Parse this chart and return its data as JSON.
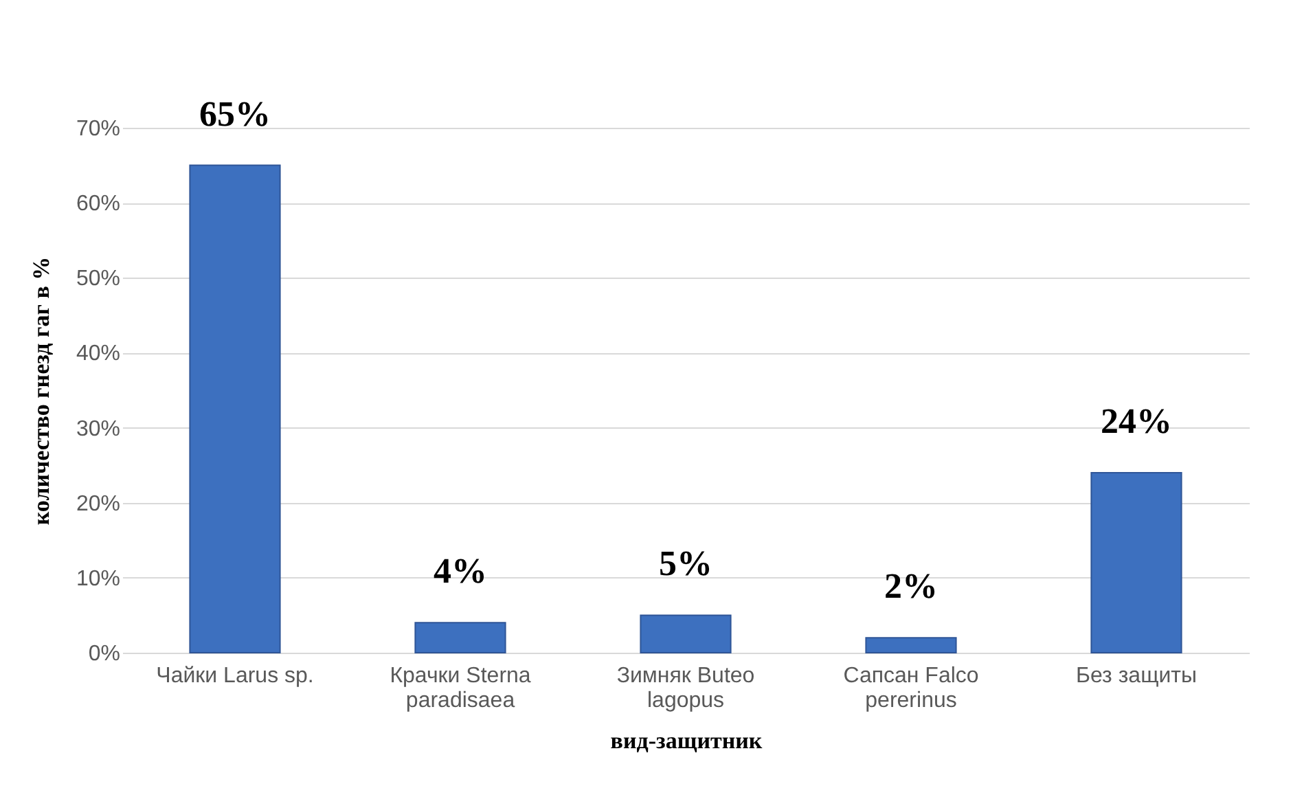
{
  "chart_data": {
    "type": "bar",
    "xlabel": "вид-защитник",
    "ylabel": "количество гнезд гаг в %",
    "categories": [
      "Чайки Larus sp.",
      "Крачки Sterna paradisaea",
      "Зимняк Buteo lagopus",
      "Сапсан Falco pererinus",
      "Без защиты"
    ],
    "values": [
      65,
      4,
      5,
      2,
      24
    ],
    "color": "#3d70bf",
    "value_labels": [
      "65%",
      "4%",
      "5%",
      "2%",
      "24%"
    ],
    "ylim": [
      0,
      70
    ],
    "yticks": [
      {
        "value": 0,
        "label": "0%"
      },
      {
        "value": 10,
        "label": "10%"
      },
      {
        "value": 20,
        "label": "20%"
      },
      {
        "value": 30,
        "label": "30%"
      },
      {
        "value": 40,
        "label": "40%"
      },
      {
        "value": 50,
        "label": "50%"
      },
      {
        "value": 60,
        "label": "60%"
      },
      {
        "value": 70,
        "label": "70%"
      }
    ],
    "grid": "y"
  }
}
